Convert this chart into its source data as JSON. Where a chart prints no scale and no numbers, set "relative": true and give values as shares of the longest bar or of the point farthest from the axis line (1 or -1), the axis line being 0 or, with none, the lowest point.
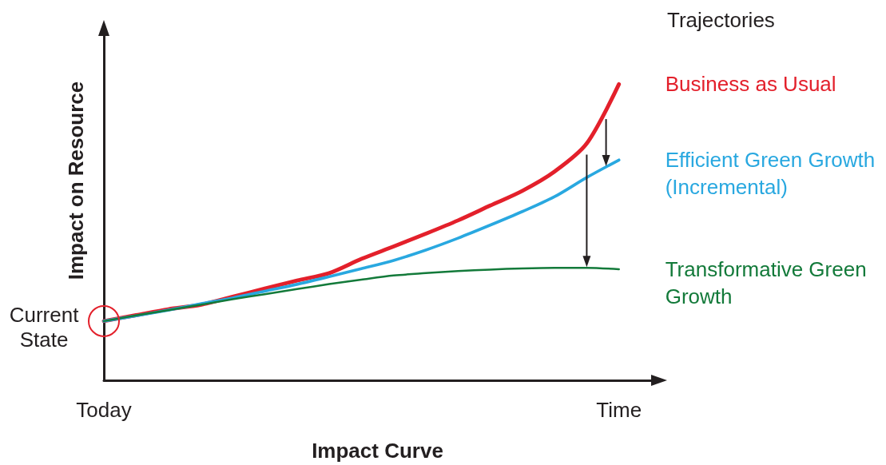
{
  "chart_data": {
    "type": "line",
    "relative": true,
    "legend_title": "Trajectories",
    "xlabel": "Impact Curve",
    "ylabel": "Impact on Resource",
    "categories": [
      "Today",
      null,
      null,
      null,
      null,
      null,
      null,
      null,
      null,
      null,
      null,
      null,
      null,
      null,
      null,
      null,
      "Time",
      null
    ],
    "annotations": [
      {
        "text": "Current State",
        "x": "Today",
        "y": 0.2
      }
    ],
    "legend": false,
    "grid": false,
    "marker": "none",
    "line_style": "solid",
    "series": [
      {
        "name": "Business as Usual",
        "color": "#e3202b",
        "values": [
          0.2,
          0.22,
          0.24,
          0.255,
          0.282,
          0.31,
          0.337,
          0.362,
          0.41,
          0.452,
          0.495,
          0.54,
          0.59,
          0.64,
          0.705,
          0.8,
          1,
          null
        ]
      },
      {
        "name": "Efficient Green Growth (Incremental)",
        "color": "#29a8e0",
        "values": [
          0.2,
          0.218,
          0.237,
          0.258,
          0.278,
          0.301,
          0.324,
          0.35,
          0.377,
          0.405,
          0.44,
          0.48,
          0.524,
          0.57,
          0.62,
          0.685,
          0.744,
          null
        ]
      },
      {
        "name": "Transformative Green Growth",
        "color": "#137a3a",
        "values": [
          0.2,
          0.219,
          0.237,
          0.255,
          0.274,
          0.291,
          0.308,
          0.325,
          0.34,
          0.354,
          0.362,
          0.369,
          0.374,
          0.378,
          0.38,
          0.38,
          0.375,
          null
        ]
      }
    ]
  }
}
